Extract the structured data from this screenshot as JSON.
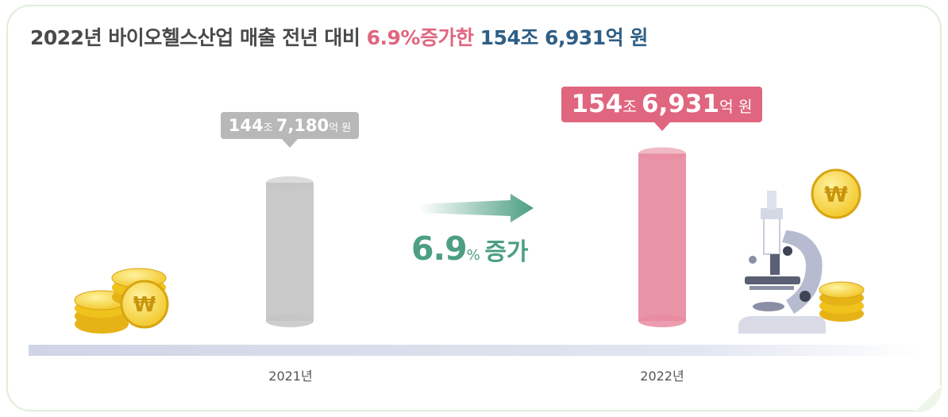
{
  "title": {
    "prefix": "2022년 바이오헬스산업 매출 전년 대비 ",
    "growth_highlight": "6.9%증가한",
    "amount_highlight": "154조 6,931억 원"
  },
  "growth_badge": {
    "number": "6.9",
    "percent": "%",
    "word": "증가"
  },
  "callouts": {
    "y2021": {
      "major": "144",
      "u1": "조 ",
      "minor": "7,180",
      "u2": "억 원"
    },
    "y2022": {
      "major": "154",
      "u1": "조 ",
      "minor": "6,931",
      "u2": "억 원"
    }
  },
  "colors": {
    "bar_2021": "#c4c4c4",
    "bar_2022": "#e88ba0",
    "growth": "#4c9e84",
    "accent_pink": "#e0667f",
    "accent_blue": "#2f5f86"
  },
  "chart_data": {
    "type": "bar",
    "categories": [
      "2021년",
      "2022년"
    ],
    "values": [
      1447180,
      1546931
    ],
    "unit": "억 원",
    "value_labels": [
      "144조 7,180억 원",
      "154조 6,931억 원"
    ],
    "growth_percent": 6.9,
    "ylim": [
      0,
      1600000
    ],
    "grid": false,
    "legend": "none"
  }
}
